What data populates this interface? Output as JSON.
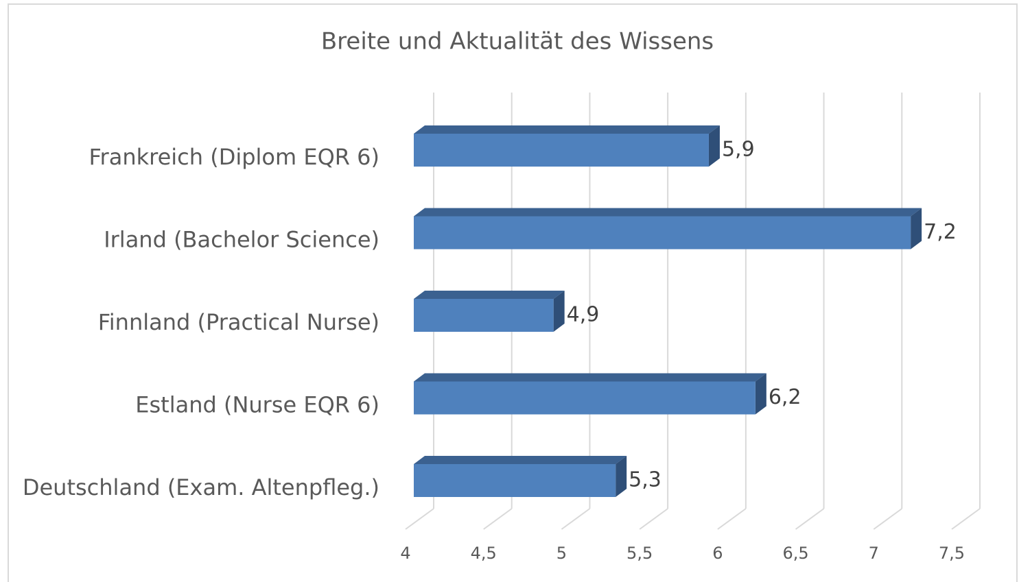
{
  "chart_data": {
    "type": "bar3d_horizontal",
    "title": "Breite und Aktualität des Wissens",
    "categories": [
      "Frankreich (Diplom EQR 6)",
      "Irland (Bachelor Science)",
      "Finnland (Practical Nurse)",
      "Estland (Nurse EQR 6)",
      "Deutschland (Exam. Altenpfleg.)"
    ],
    "values": [
      5.9,
      7.2,
      4.9,
      6.2,
      5.3
    ],
    "value_labels": [
      "5,9",
      "7,2",
      "4,9",
      "6,2",
      "5,3"
    ],
    "color": "#4f81bd",
    "xlim": [
      4,
      7.5
    ],
    "xticks": [
      4,
      {
        "value": 4.5,
        "label": "4,5"
      },
      5,
      {
        "value": 5.5,
        "label": "5,5"
      },
      6,
      {
        "value": 6.5,
        "label": "6,5"
      },
      7,
      {
        "value": 7.5,
        "label": "7,5"
      }
    ],
    "grid": true
  }
}
